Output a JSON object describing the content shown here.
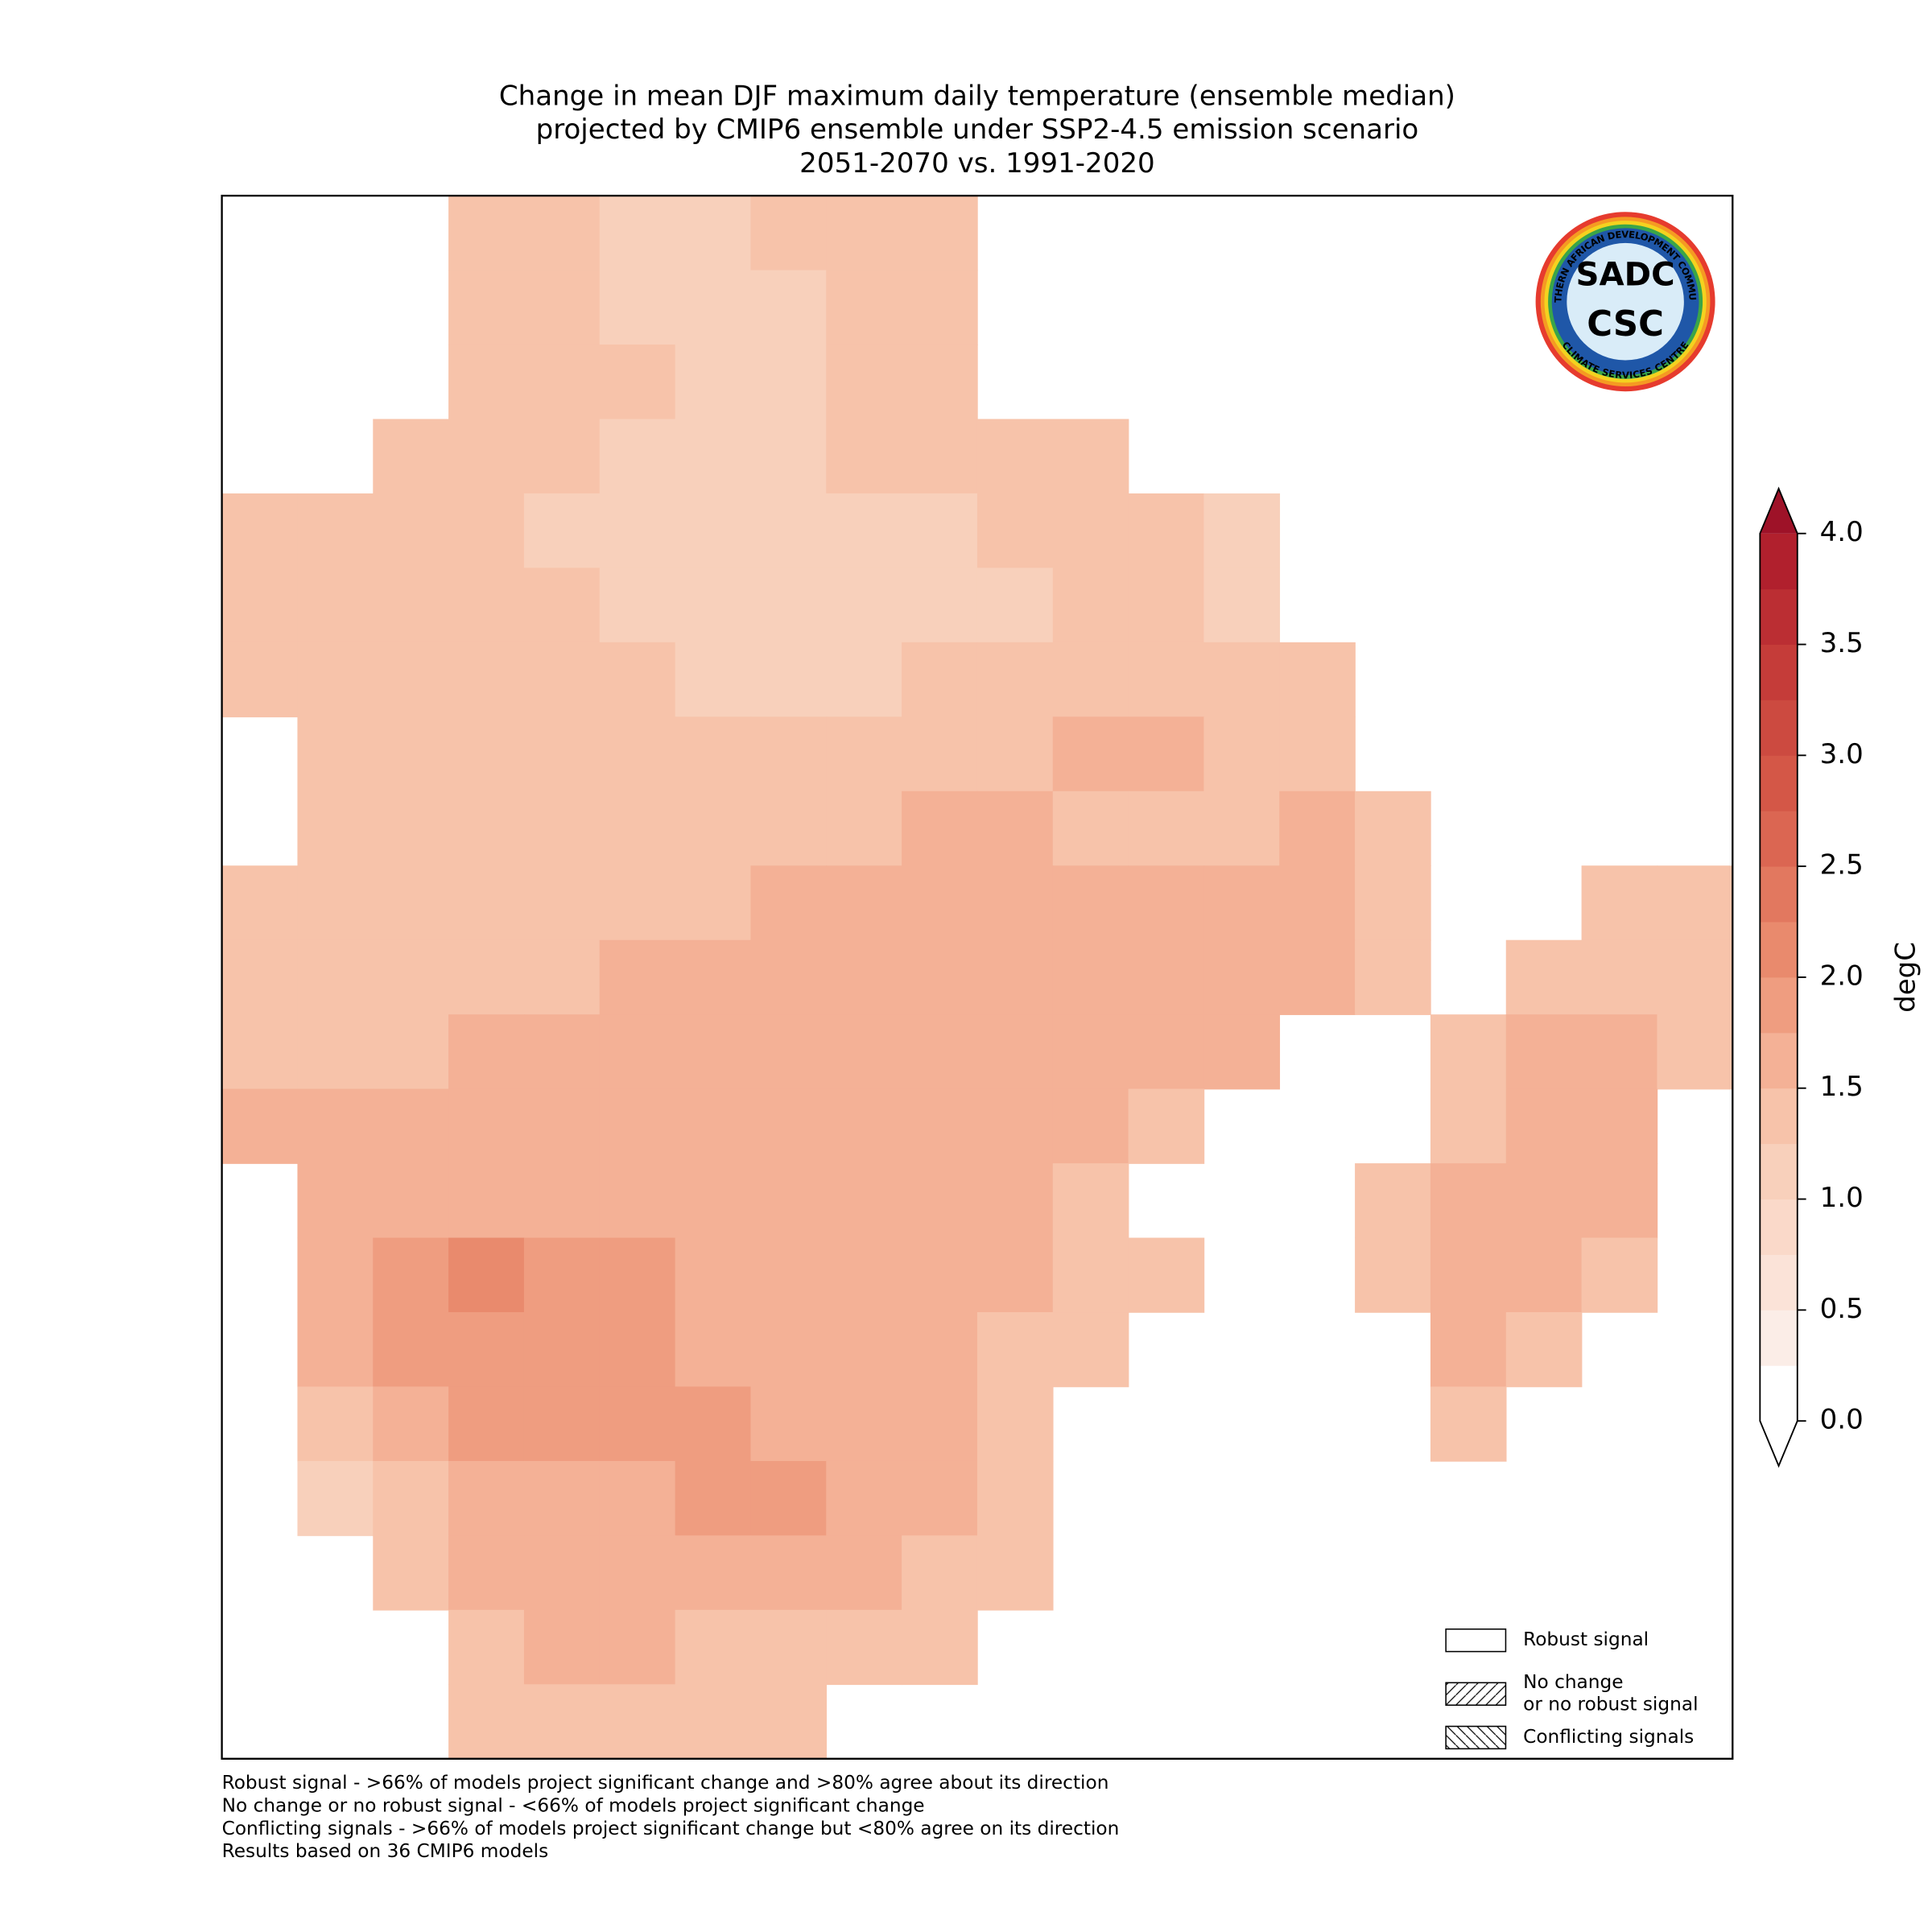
{
  "chart_data": {
    "type": "grid-map",
    "title": [
      "Change in mean DJF maximum daily temperature (ensemble median)",
      "projected by CMIP6 ensemble under SSP2-4.5 emission scenario",
      "2051-2070 vs. 1991-2020"
    ],
    "cells": [
      [
        null,
        null,
        null,
        1.3,
        1.3,
        1.2,
        1.2,
        1.3,
        1.3,
        1.3,
        null,
        null,
        null,
        null,
        null,
        null,
        null,
        null,
        null,
        null
      ],
      [
        null,
        null,
        null,
        1.4,
        1.3,
        1.2,
        1.2,
        1.2,
        1.3,
        1.3,
        null,
        null,
        null,
        null,
        null,
        null,
        null,
        null,
        null,
        null
      ],
      [
        null,
        null,
        null,
        1.3,
        1.3,
        1.3,
        1.2,
        1.2,
        1.3,
        1.3,
        null,
        null,
        null,
        null,
        null,
        null,
        null,
        null,
        null,
        null
      ],
      [
        null,
        null,
        1.3,
        1.3,
        1.3,
        1.2,
        1.1,
        1.2,
        1.3,
        1.3,
        1.3,
        1.3,
        null,
        null,
        null,
        null,
        null,
        null,
        null,
        null
      ],
      [
        1.3,
        1.3,
        1.3,
        1.3,
        1.2,
        1.1,
        1.1,
        1.2,
        1.2,
        1.2,
        1.3,
        1.3,
        1.3,
        1.2,
        null,
        null,
        null,
        null,
        null,
        null
      ],
      [
        1.3,
        1.3,
        1.3,
        1.3,
        1.3,
        1.2,
        1.1,
        1.1,
        1.2,
        1.2,
        1.2,
        1.3,
        1.3,
        1.2,
        null,
        null,
        null,
        null,
        null,
        null
      ],
      [
        1.3,
        1.3,
        1.3,
        1.3,
        1.3,
        1.3,
        1.2,
        1.2,
        1.2,
        1.3,
        1.3,
        1.4,
        1.4,
        1.3,
        1.3,
        null,
        null,
        null,
        null,
        null
      ],
      [
        null,
        1.3,
        1.3,
        1.4,
        1.4,
        1.3,
        1.3,
        1.3,
        1.3,
        1.4,
        1.3,
        1.5,
        1.5,
        1.4,
        1.3,
        null,
        null,
        null,
        null,
        null
      ],
      [
        null,
        1.3,
        1.3,
        1.4,
        1.4,
        1.4,
        1.4,
        1.4,
        1.4,
        1.5,
        1.5,
        1.4,
        1.4,
        1.4,
        1.5,
        1.4,
        null,
        null,
        null,
        null
      ],
      [
        1.3,
        1.3,
        1.3,
        1.4,
        1.4,
        1.4,
        1.4,
        1.5,
        1.5,
        1.5,
        1.5,
        1.5,
        1.6,
        1.6,
        1.5,
        1.4,
        null,
        null,
        1.3,
        1.3
      ],
      [
        1.3,
        1.3,
        1.3,
        1.4,
        1.4,
        1.5,
        1.5,
        1.5,
        1.5,
        1.5,
        1.5,
        1.5,
        1.6,
        1.6,
        1.5,
        1.4,
        null,
        1.3,
        1.4,
        1.3
      ],
      [
        1.4,
        1.4,
        1.4,
        1.5,
        1.5,
        1.5,
        1.5,
        1.5,
        1.5,
        1.6,
        1.6,
        1.6,
        1.5,
        1.5,
        null,
        null,
        1.4,
        1.5,
        1.5,
        1.3
      ],
      [
        1.5,
        1.6,
        1.6,
        1.5,
        1.5,
        1.6,
        1.6,
        1.7,
        1.7,
        1.7,
        1.6,
        1.6,
        1.4,
        null,
        null,
        null,
        1.4,
        1.5,
        1.5,
        null
      ],
      [
        null,
        1.6,
        1.7,
        1.7,
        1.7,
        1.7,
        1.7,
        1.7,
        1.7,
        1.7,
        1.5,
        1.4,
        null,
        null,
        null,
        1.4,
        1.5,
        1.5,
        1.5,
        null
      ],
      [
        null,
        1.6,
        1.8,
        2.0,
        1.9,
        1.8,
        1.7,
        1.7,
        1.7,
        1.6,
        1.5,
        1.4,
        1.3,
        null,
        null,
        1.3,
        1.5,
        1.5,
        1.4,
        null
      ],
      [
        null,
        1.5,
        1.8,
        1.9,
        1.9,
        1.8,
        1.7,
        1.7,
        1.6,
        1.5,
        1.4,
        1.3,
        null,
        null,
        null,
        null,
        1.5,
        1.4,
        null,
        null
      ],
      [
        null,
        1.4,
        1.6,
        1.8,
        1.8,
        1.8,
        1.8,
        1.7,
        1.6,
        1.5,
        1.4,
        null,
        null,
        null,
        null,
        null,
        1.4,
        null,
        null,
        null
      ],
      [
        null,
        1.2,
        1.4,
        1.5,
        1.7,
        1.7,
        1.8,
        1.8,
        1.7,
        1.5,
        1.4,
        null,
        null,
        null,
        null,
        null,
        null,
        null,
        null,
        null
      ],
      [
        null,
        null,
        1.3,
        1.5,
        1.5,
        1.6,
        1.6,
        1.6,
        1.6,
        1.4,
        1.3,
        null,
        null,
        null,
        null,
        null,
        null,
        null,
        null,
        null
      ],
      [
        null,
        null,
        null,
        1.4,
        1.5,
        1.5,
        1.4,
        1.4,
        1.4,
        1.3,
        null,
        null,
        null,
        null,
        null,
        null,
        null,
        null,
        null,
        null
      ],
      [
        null,
        null,
        null,
        1.3,
        1.3,
        1.3,
        1.3,
        1.3,
        null,
        null,
        null,
        null,
        null,
        null,
        null,
        null,
        null,
        null,
        null,
        null
      ]
    ],
    "colorbar": {
      "label": "degC",
      "lim": [
        0,
        4
      ],
      "ticks": [
        {
          "value": 0,
          "label": "0.0"
        },
        0.5,
        {
          "value": 1,
          "label": "1.0"
        },
        1.5,
        {
          "value": 2,
          "label": "2.0"
        },
        2.5,
        {
          "value": 3,
          "label": "3.0"
        },
        3.5,
        {
          "value": 4,
          "label": "4.0"
        }
      ],
      "colors": [
        "#ffffff",
        "#fbede7",
        "#fbe3d8",
        "#fad9c9",
        "#f8d0bb",
        "#f7c3aa",
        "#f4b196",
        "#ef9d80",
        "#e98a6d",
        "#e2785f",
        "#db6652",
        "#d45747",
        "#cc4a40",
        "#c53c39",
        "#bb2e33",
        "#b1202d"
      ],
      "under": "#ffffff",
      "over": "#9e1228"
    },
    "legend": [
      {
        "lines": [
          "Robust signal"
        ],
        "hatch": "none"
      },
      {
        "lines": [
          "No change",
          "or no robust signal"
        ],
        "hatch": "forward"
      },
      {
        "lines": [
          "Conflicting signals"
        ],
        "hatch": "back"
      }
    ],
    "footnotes": [
      "Robust signal - >66% of models project significant change and >80% agree about its direction",
      "No change or no robust signal - <66% of models project significant change",
      "Conflicting signals - >66% of models project significant change but <80% agree on its direction",
      "Results based on 36 CMIP6 models"
    ],
    "logo": {
      "ring_top": "SOUTHERN AFRICAN DEVELOPMENT COMMUNITY",
      "ring_bottom": "CLIMATE SERVICES CENTRE",
      "name": "SADC",
      "unit": "CSC"
    }
  }
}
